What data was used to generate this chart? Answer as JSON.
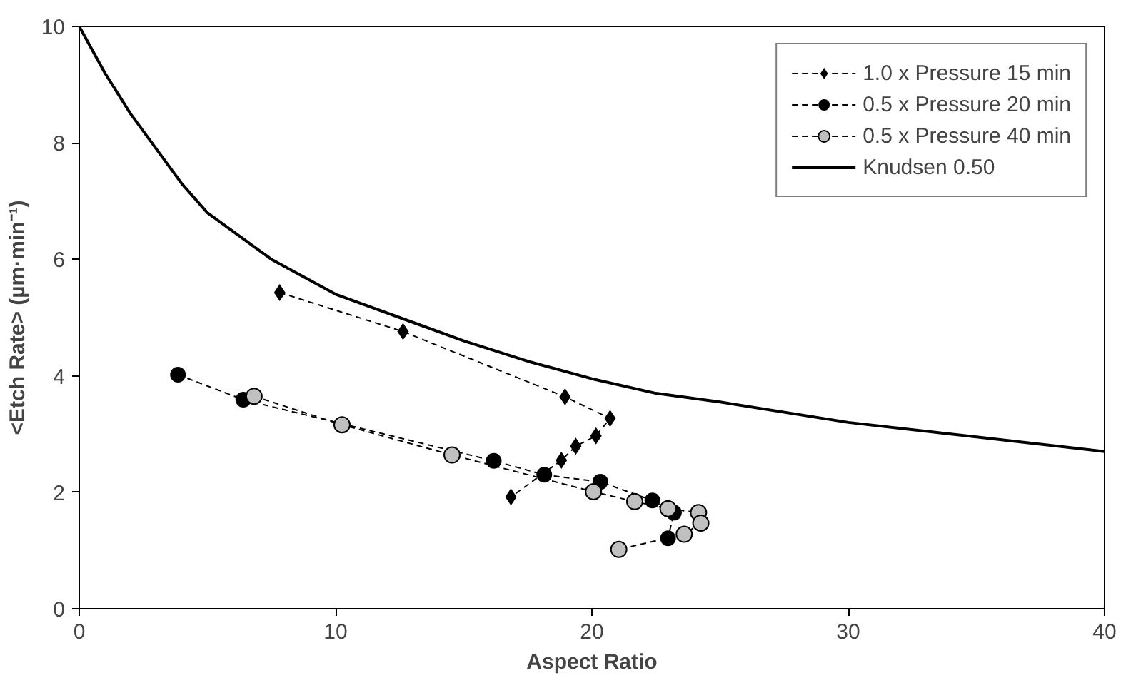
{
  "chart_data": {
    "type": "line",
    "xlabel": "Aspect Ratio",
    "ylabel": "<Etch Rate> (µm·min⁻¹)",
    "xlim": [
      0,
      40
    ],
    "ylim": [
      0,
      10
    ],
    "xticks": [
      0,
      10,
      20,
      30,
      40
    ],
    "yticks": [
      0,
      2,
      4,
      6,
      8,
      10
    ],
    "grid": false,
    "legend": "top right",
    "line_style": "dashed",
    "series": [
      {
        "name": "1.0 x Pressure 15 min",
        "color": "#000000",
        "marker": "diamond",
        "x": [
          7.82,
          12.63,
          18.95,
          20.71,
          20.16,
          19.37,
          18.81,
          16.84
        ],
        "values": [
          5.43,
          4.76,
          3.64,
          3.27,
          2.97,
          2.79,
          2.55,
          1.92
        ]
      },
      {
        "name": "0.5 x Pressure 20 min",
        "color": "#000000",
        "marker": "circle",
        "x": [
          3.85,
          6.4,
          16.17,
          18.14,
          20.33,
          22.36,
          23.2,
          22.97
        ],
        "values": [
          4.02,
          3.59,
          2.54,
          2.3,
          2.18,
          1.86,
          1.65,
          1.21
        ]
      },
      {
        "name": "0.5 x Pressure 40 min",
        "color": "#c0c0c0",
        "marker": "circle",
        "x": [
          6.82,
          10.25,
          14.54,
          20.06,
          21.67,
          22.97,
          24.16,
          24.25,
          23.6,
          21.05
        ],
        "values": [
          3.65,
          3.16,
          2.64,
          2.01,
          1.84,
          1.72,
          1.65,
          1.47,
          1.28,
          1.02
        ]
      },
      {
        "name": "Knudsen 0.50",
        "type": "line",
        "line_style": "solid",
        "marker": "none",
        "color": "#000000",
        "x": [
          0,
          1,
          2,
          3,
          4,
          5,
          7.5,
          10,
          12.5,
          15,
          17.5,
          20,
          22.5,
          25,
          30,
          35,
          40
        ],
        "values": [
          10,
          9.2,
          8.5,
          7.9,
          7.3,
          6.8,
          6.0,
          5.4,
          5.0,
          4.6,
          4.25,
          3.95,
          3.7,
          3.55,
          3.2,
          2.95,
          2.7
        ]
      }
    ]
  }
}
